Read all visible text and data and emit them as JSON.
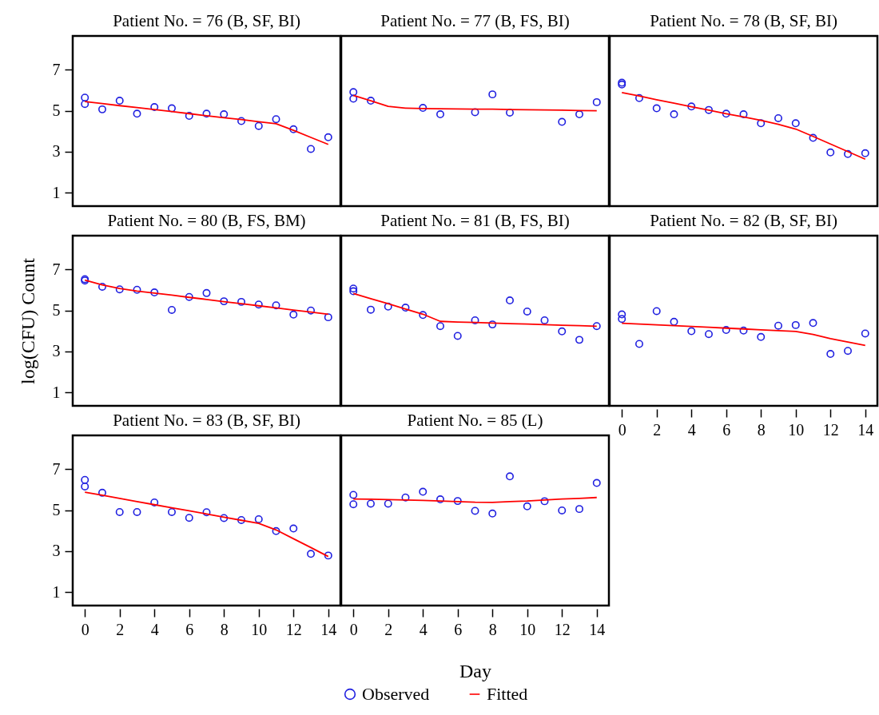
{
  "chart_data": [
    {
      "type": "scatter",
      "title": "Patient No. = 76 (B, SF, BI)",
      "xlim": [
        -0.7,
        14.7
      ],
      "xticks": [
        0,
        2,
        4,
        6,
        8,
        10,
        12,
        14
      ],
      "ylim": [
        0.35,
        8.65
      ],
      "yticks": [
        1,
        3,
        5,
        7
      ],
      "tick_labels": "y",
      "series": [
        {
          "color": "#2020e0",
          "marker": "circle",
          "x": [
            0,
            0,
            1,
            2,
            3,
            4,
            5,
            6,
            7,
            8,
            9,
            10,
            11,
            12,
            13,
            14
          ],
          "values": [
            5.64,
            5.33,
            5.07,
            5.49,
            4.86,
            5.18,
            5.12,
            4.75,
            4.86,
            4.83,
            4.5,
            4.26,
            4.59,
            4.1,
            3.14,
            3.71
          ]
        },
        {
          "type": "line",
          "color": "#ff0000",
          "line_style": "solid",
          "x": [
            0,
            1,
            2,
            3,
            4,
            5,
            6,
            7,
            8,
            9,
            10,
            11,
            12,
            13,
            14
          ],
          "values": [
            5.45,
            5.35,
            5.25,
            5.16,
            5.06,
            4.96,
            4.86,
            4.76,
            4.66,
            4.57,
            4.47,
            4.37,
            4.05,
            3.7,
            3.36
          ]
        }
      ]
    },
    {
      "type": "scatter",
      "title": "Patient No. = 77 (B, FS, BI)",
      "xlim": [
        -0.7,
        14.7
      ],
      "xticks": [
        0,
        2,
        4,
        6,
        8,
        10,
        12,
        14
      ],
      "ylim": [
        0.35,
        8.65
      ],
      "yticks": [
        1,
        3,
        5,
        7
      ],
      "tick_labels": false,
      "series": [
        {
          "color": "#2020e0",
          "marker": "circle",
          "x": [
            0,
            0,
            1,
            4,
            5,
            7,
            8,
            9,
            12,
            13,
            14
          ],
          "values": [
            5.91,
            5.59,
            5.49,
            5.14,
            4.83,
            4.93,
            5.8,
            4.91,
            4.46,
            4.83,
            5.42
          ]
        },
        {
          "type": "line",
          "color": "#ff0000",
          "line_style": "solid",
          "x": [
            0,
            1,
            2,
            3,
            4,
            5,
            6,
            7,
            8,
            9,
            10,
            11,
            12,
            13,
            14
          ],
          "values": [
            5.75,
            5.49,
            5.22,
            5.13,
            5.11,
            5.1,
            5.09,
            5.08,
            5.08,
            5.06,
            5.05,
            5.04,
            5.03,
            5.01,
            5.0
          ]
        }
      ]
    },
    {
      "type": "scatter",
      "title": "Patient No. = 78 (B, SF, BI)",
      "xlim": [
        -0.7,
        14.7
      ],
      "xticks": [
        0,
        2,
        4,
        6,
        8,
        10,
        12,
        14
      ],
      "ylim": [
        0.35,
        8.65
      ],
      "yticks": [
        1,
        3,
        5,
        7
      ],
      "tick_labels": false,
      "series": [
        {
          "color": "#2020e0",
          "marker": "circle",
          "x": [
            0,
            0,
            1,
            2,
            3,
            4,
            5,
            6,
            7,
            8,
            9,
            10,
            11,
            12,
            13,
            14
          ],
          "values": [
            6.37,
            6.28,
            5.62,
            5.12,
            4.83,
            5.21,
            5.04,
            4.86,
            4.83,
            4.39,
            4.64,
            4.39,
            3.68,
            2.97,
            2.89,
            2.93
          ]
        },
        {
          "type": "line",
          "color": "#ff0000",
          "line_style": "solid",
          "x": [
            0,
            1,
            2,
            3,
            4,
            5,
            6,
            7,
            8,
            9,
            10,
            11,
            12,
            13,
            14
          ],
          "values": [
            5.89,
            5.72,
            5.54,
            5.37,
            5.2,
            5.03,
            4.86,
            4.7,
            4.53,
            4.34,
            4.11,
            3.75,
            3.38,
            3.01,
            2.64
          ]
        }
      ]
    },
    {
      "type": "scatter",
      "title": "Patient No. = 80 (B, FS, BM)",
      "ylabel": "log(CFU) Count",
      "xlim": [
        -0.7,
        14.7
      ],
      "xticks": [
        0,
        2,
        4,
        6,
        8,
        10,
        12,
        14
      ],
      "ylim": [
        0.35,
        8.65
      ],
      "yticks": [
        1,
        3,
        5,
        7
      ],
      "tick_labels": "y",
      "series": [
        {
          "color": "#2020e0",
          "marker": "circle",
          "x": [
            0,
            0,
            1,
            2,
            3,
            4,
            5,
            6,
            7,
            8,
            9,
            10,
            11,
            12,
            13,
            14
          ],
          "values": [
            6.53,
            6.46,
            6.16,
            6.03,
            6.01,
            5.88,
            5.03,
            5.66,
            5.85,
            5.45,
            5.42,
            5.29,
            5.25,
            4.8,
            5.0,
            4.67
          ]
        },
        {
          "type": "line",
          "color": "#ff0000",
          "line_style": "solid",
          "x": [
            0,
            1,
            2,
            3,
            4,
            5,
            6,
            7,
            8,
            9,
            10,
            11,
            12,
            13,
            14
          ],
          "values": [
            6.48,
            6.25,
            6.07,
            5.95,
            5.85,
            5.75,
            5.64,
            5.54,
            5.43,
            5.33,
            5.23,
            5.13,
            5.02,
            4.92,
            4.82
          ]
        }
      ]
    },
    {
      "type": "scatter",
      "title": "Patient No. = 81 (B, FS, BI)",
      "xlim": [
        -0.7,
        14.7
      ],
      "xticks": [
        0,
        2,
        4,
        6,
        8,
        10,
        12,
        14
      ],
      "ylim": [
        0.35,
        8.65
      ],
      "yticks": [
        1,
        3,
        5,
        7
      ],
      "tick_labels": false,
      "series": [
        {
          "color": "#2020e0",
          "marker": "circle",
          "x": [
            0,
            0,
            1,
            2,
            3,
            4,
            5,
            6,
            7,
            8,
            9,
            10,
            11,
            12,
            13,
            14
          ],
          "values": [
            6.07,
            5.94,
            5.04,
            5.19,
            5.14,
            4.78,
            4.24,
            3.76,
            4.52,
            4.32,
            5.49,
            4.95,
            4.52,
            3.98,
            3.57,
            4.24
          ]
        },
        {
          "type": "line",
          "color": "#ff0000",
          "line_style": "solid",
          "x": [
            0,
            1,
            2,
            3,
            4,
            5,
            6,
            7,
            8,
            9,
            10,
            11,
            12,
            13,
            14
          ],
          "values": [
            5.83,
            5.58,
            5.33,
            5.07,
            4.82,
            4.47,
            4.44,
            4.42,
            4.39,
            4.36,
            4.34,
            4.31,
            4.28,
            4.26,
            4.23
          ]
        }
      ]
    },
    {
      "type": "scatter",
      "title": "Patient No. = 82 (B, SF, BI)",
      "xlim": [
        -0.7,
        14.7
      ],
      "xticks": [
        0,
        2,
        4,
        6,
        8,
        10,
        12,
        14
      ],
      "ylim": [
        0.35,
        8.65
      ],
      "yticks": [
        1,
        3,
        5,
        7
      ],
      "tick_labels": "x",
      "series": [
        {
          "color": "#2020e0",
          "marker": "circle",
          "x": [
            0,
            0,
            1,
            2,
            3,
            4,
            5,
            6,
            7,
            8,
            9,
            10,
            11,
            12,
            13,
            14
          ],
          "values": [
            4.81,
            4.59,
            3.37,
            4.97,
            4.45,
            3.99,
            3.85,
            4.05,
            4.02,
            3.71,
            4.26,
            4.29,
            4.39,
            2.88,
            3.03,
            3.88
          ]
        },
        {
          "type": "line",
          "color": "#ff0000",
          "line_style": "solid",
          "x": [
            0,
            1,
            2,
            3,
            4,
            5,
            6,
            7,
            8,
            9,
            10,
            11,
            12,
            13,
            14
          ],
          "values": [
            4.38,
            4.34,
            4.3,
            4.26,
            4.22,
            4.18,
            4.14,
            4.1,
            4.06,
            4.02,
            3.98,
            3.83,
            3.63,
            3.46,
            3.3
          ]
        }
      ]
    },
    {
      "type": "scatter",
      "title": "Patient No. = 83 (B, SF, BI)",
      "xlim": [
        -0.7,
        14.7
      ],
      "xticks": [
        0,
        2,
        4,
        6,
        8,
        10,
        12,
        14
      ],
      "ylim": [
        0.35,
        8.65
      ],
      "yticks": [
        1,
        3,
        5,
        7
      ],
      "series": [
        {
          "color": "#2020e0",
          "marker": "circle",
          "x": [
            0,
            0,
            1,
            2,
            3,
            4,
            5,
            6,
            7,
            8,
            9,
            10,
            11,
            12,
            13,
            14
          ],
          "values": [
            6.48,
            6.16,
            5.85,
            4.91,
            4.91,
            5.38,
            4.91,
            4.63,
            4.9,
            4.62,
            4.52,
            4.56,
            3.98,
            4.11,
            2.87,
            2.79
          ]
        },
        {
          "type": "line",
          "color": "#ff0000",
          "line_style": "solid",
          "x": [
            0,
            1,
            2,
            3,
            4,
            5,
            6,
            7,
            8,
            9,
            10,
            11,
            12,
            13,
            14
          ],
          "values": [
            5.88,
            5.73,
            5.58,
            5.42,
            5.27,
            5.12,
            4.97,
            4.82,
            4.66,
            4.51,
            4.36,
            4.04,
            3.61,
            3.18,
            2.74
          ]
        }
      ]
    },
    {
      "type": "scatter",
      "title": "Patient No. = 85 (L)",
      "xlabel": "Day",
      "xlim": [
        -0.7,
        14.7
      ],
      "xticks": [
        0,
        2,
        4,
        6,
        8,
        10,
        12,
        14
      ],
      "ylim": [
        0.35,
        8.65
      ],
      "yticks": [
        1,
        3,
        5,
        7
      ],
      "tick_labels": "x",
      "legend": "bottom",
      "series": [
        {
          "name": "Observed",
          "color": "#2020e0",
          "marker": "circle",
          "x": [
            0,
            0,
            1,
            2,
            3,
            4,
            5,
            6,
            7,
            8,
            9,
            10,
            11,
            12,
            13,
            14
          ],
          "values": [
            5.75,
            5.29,
            5.32,
            5.32,
            5.62,
            5.9,
            5.53,
            5.45,
            4.97,
            4.84,
            6.65,
            5.19,
            5.44,
            4.99,
            5.06,
            6.33
          ]
        },
        {
          "type": "line",
          "name": "Fitted",
          "color": "#ff0000",
          "line_style": "solid",
          "x": [
            0,
            1,
            2,
            3,
            4,
            5,
            6,
            7,
            8,
            9,
            10,
            11,
            12,
            13,
            14
          ],
          "values": [
            5.55,
            5.54,
            5.52,
            5.5,
            5.48,
            5.45,
            5.42,
            5.39,
            5.38,
            5.42,
            5.45,
            5.5,
            5.55,
            5.58,
            5.62
          ]
        }
      ]
    }
  ]
}
